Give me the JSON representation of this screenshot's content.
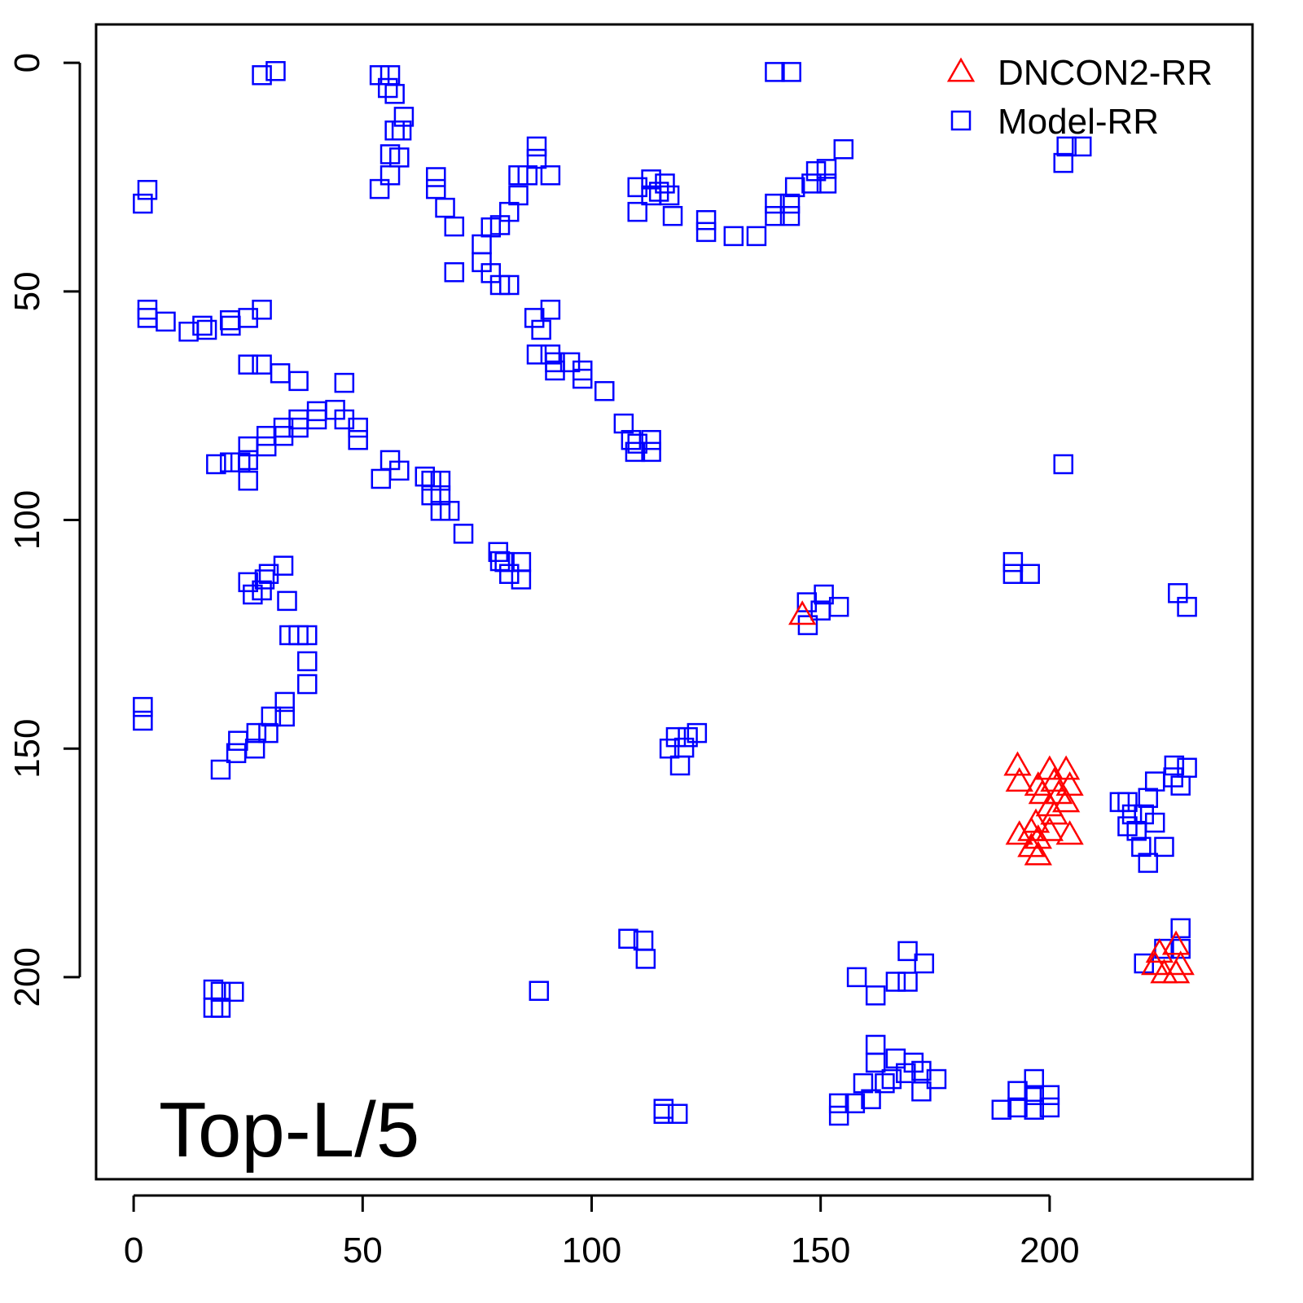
{
  "chart_data": {
    "type": "scatter",
    "annotation": "Top-L/5",
    "xlim": [
      -8.2,
      244.3
    ],
    "ylim": [
      244.2,
      -8.4
    ],
    "xticks": [
      0,
      50,
      100,
      150,
      200
    ],
    "yticks": [
      0,
      50,
      100,
      150,
      200
    ],
    "grid": false,
    "legend_position": "top-right",
    "series": [
      {
        "name": "DNCON2-RR",
        "color": "#ff0000",
        "marker": "triangle",
        "x": [
          146,
          193,
          193.4,
          200,
          203.6,
          201,
          197.5,
          198.4,
          202,
          200,
          203.6,
          204.4,
          193.4,
          196,
          197.5,
          196,
          197.5,
          200,
          204.4,
          197,
          201,
          223,
          225,
          227.6,
          228.6,
          224,
          227.6
        ],
        "y": [
          120.7,
          153.7,
          157.2,
          154.6,
          154.6,
          157.2,
          158.1,
          159.9,
          159.9,
          162.6,
          161.7,
          158.1,
          168.8,
          168,
          169.7,
          171.5,
          173.3,
          168,
          168.8,
          166.2,
          164.4,
          197.3,
          199.1,
          192.9,
          197.3,
          194.6,
          199.1
        ]
      },
      {
        "name": "Model-RR",
        "color": "#0000ff",
        "marker": "square",
        "x": [
          28,
          31,
          53.7,
          56,
          55.5,
          57,
          59,
          58.5,
          57,
          56,
          58,
          56,
          53.7,
          66,
          66,
          68,
          70,
          70,
          76,
          78,
          80,
          82,
          84,
          84,
          86,
          88,
          88,
          91,
          76,
          78,
          80,
          82,
          2,
          3,
          3,
          3,
          7,
          12,
          15,
          16,
          21.2,
          21,
          25,
          28,
          25,
          28,
          32,
          36,
          46,
          18,
          21,
          23.3,
          25,
          25,
          25,
          29,
          29,
          32.7,
          32.7,
          36,
          36,
          40,
          40,
          44,
          46,
          49,
          49,
          54,
          56,
          58,
          63.6,
          65,
          67,
          65,
          67,
          67,
          69,
          72,
          79.6,
          81,
          82,
          84.6,
          84.6,
          80,
          87.5,
          91,
          89,
          88,
          91,
          92,
          92,
          95.3,
          98,
          98,
          102.8,
          107,
          108.6,
          110,
          113,
          113,
          109.5,
          110,
          110,
          113,
          114.7,
          116,
          117,
          117.7,
          113,
          125,
          125,
          131,
          136,
          140,
          140,
          143.3,
          143.3,
          144.4,
          148,
          149,
          151.3,
          151.3,
          155,
          140,
          143.6,
          203,
          203.7,
          207,
          203,
          192,
          192,
          195.7,
          228,
          230,
          147,
          147.2,
          150,
          154,
          150.7,
          2,
          2,
          25,
          28,
          29.5,
          32.7,
          33.5,
          28.6,
          26,
          34,
          36,
          37.9,
          37.9,
          37.9,
          33,
          33,
          30,
          29.4,
          26.8,
          26.5,
          22.8,
          22.4,
          19,
          117,
          119.3,
          121,
          123,
          118.4,
          120.2,
          217,
          215.3,
          218,
          219,
          220,
          221.5,
          217,
          221.5,
          223,
          227,
          227.2,
          230,
          228.6,
          225,
          223,
          220.6,
          88.5,
          108,
          111.3,
          111.8,
          17.4,
          19,
          21.9,
          17.4,
          19,
          157.9,
          162,
          166.4,
          169,
          169,
          172.6,
          220.6,
          228.6,
          228.6,
          225,
          162,
          162,
          166.4,
          168.6,
          172,
          175.3,
          164,
          159.3,
          157.5,
          154,
          154,
          161,
          170.3,
          172,
          165.5,
          189.5,
          193,
          196.6,
          196.6,
          200,
          200,
          196.6,
          193,
          115.7,
          118.8,
          115.7
        ],
        "y": [
          2.7,
          1.8,
          2.7,
          2.7,
          5.5,
          6.8,
          11.8,
          14.8,
          14.8,
          20,
          20.7,
          24.6,
          27.6,
          25,
          27.6,
          31.7,
          35.8,
          45.8,
          39.7,
          36,
          35.5,
          32.6,
          29,
          24.6,
          24.6,
          21,
          18.3,
          24.6,
          43.6,
          46,
          48.6,
          48.6,
          30.8,
          27.8,
          54,
          55.8,
          56.6,
          58.8,
          57.5,
          58.4,
          57.5,
          56.3,
          55.8,
          54,
          66,
          66,
          67.9,
          69.6,
          70,
          87.8,
          87.4,
          87.4,
          86.9,
          91.4,
          83.9,
          83.9,
          81.6,
          81.6,
          79.8,
          79.8,
          78,
          76.2,
          78,
          75.9,
          78,
          79.8,
          82.5,
          91,
          86.9,
          89.2,
          90.5,
          91.4,
          91.4,
          94.6,
          94.6,
          98,
          98,
          103,
          107,
          109.2,
          111.8,
          109.2,
          113,
          109,
          55.8,
          54,
          58.4,
          63.8,
          63.8,
          65.5,
          67.3,
          65.5,
          67.3,
          69.1,
          71.8,
          78.9,
          82.5,
          83.3,
          82.5,
          85.1,
          85.1,
          27.2,
          32.6,
          25.5,
          28.2,
          26.4,
          29,
          33.5,
          29,
          34.4,
          37,
          37.9,
          37.9,
          33.5,
          30.8,
          30.8,
          33.5,
          27.2,
          26.4,
          23.7,
          26.4,
          23.2,
          18.9,
          2,
          2,
          21.9,
          18.3,
          18.3,
          87.8,
          109.2,
          111.8,
          111.8,
          116,
          119,
          118,
          123,
          119.8,
          119,
          116.3,
          140.9,
          143.9,
          113.6,
          115.4,
          111.8,
          110,
          117.7,
          113,
          116.3,
          125.2,
          125.2,
          125.2,
          130.9,
          135.9,
          143,
          139.8,
          143,
          146.6,
          146.6,
          150,
          148.3,
          151,
          154.6,
          150,
          153.7,
          147.5,
          146.6,
          147.5,
          149.8,
          161.7,
          161.7,
          164.4,
          168,
          171.5,
          175,
          167,
          160.8,
          157.2,
          156.3,
          153.7,
          154.2,
          158.1,
          171.5,
          166.2,
          164.4,
          203,
          191.6,
          192,
          196,
          202.7,
          203.2,
          203.2,
          206.7,
          206.7,
          200,
          204,
          201,
          194.3,
          201,
          197,
          197,
          189.3,
          193.8,
          193.8,
          214.8,
          218.7,
          217.8,
          221,
          220.5,
          222.3,
          223.2,
          223.2,
          227.6,
          227.6,
          230.3,
          226.7,
          218.7,
          225,
          222.3,
          229,
          228.5,
          225.8,
          222.3,
          225.8,
          228.5,
          229,
          224.9,
          228.8,
          229.9,
          229.9
        ]
      }
    ]
  }
}
